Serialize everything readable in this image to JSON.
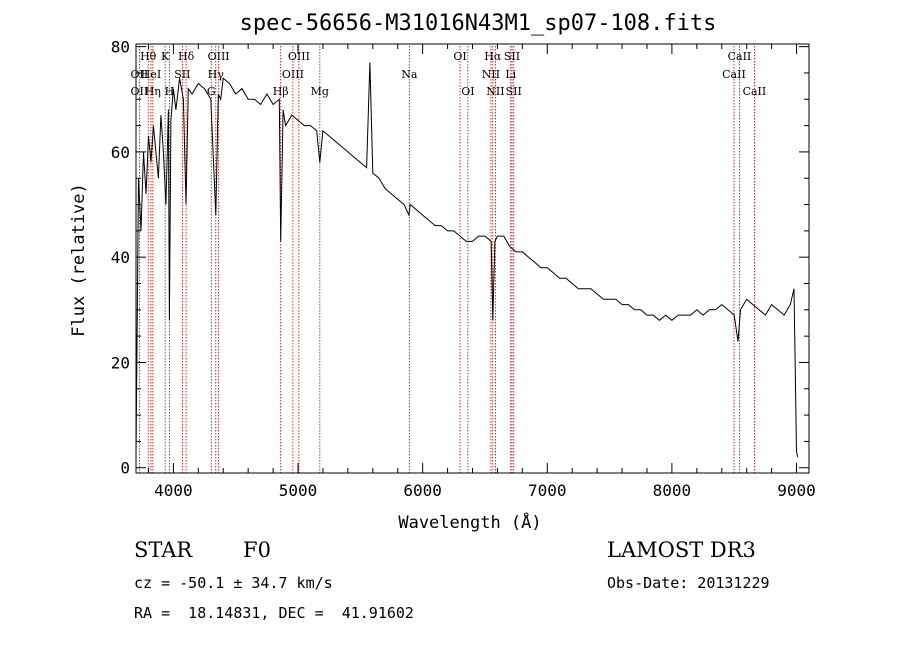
{
  "chart_data": {
    "type": "line",
    "title": "spec-56656-M31016N43M1_sp07-108.fits",
    "xlabel": "Wavelength (Å)",
    "ylabel": "Flux (relative)",
    "xlim": [
      3700,
      9100
    ],
    "ylim": [
      -1,
      80.5
    ],
    "xticks": [
      4000,
      5000,
      6000,
      7000,
      8000,
      9000
    ],
    "yticks": [
      0,
      20,
      40,
      60,
      80
    ],
    "spectrum": {
      "x": [
        3700,
        3720,
        3740,
        3760,
        3780,
        3800,
        3820,
        3840,
        3860,
        3880,
        3900,
        3920,
        3940,
        3960,
        3968,
        3980,
        4000,
        4020,
        4050,
        4080,
        4101,
        4120,
        4150,
        4200,
        4250,
        4300,
        4340,
        4360,
        4380,
        4400,
        4450,
        4500,
        4550,
        4600,
        4650,
        4700,
        4750,
        4800,
        4850,
        4861,
        4880,
        4900,
        4950,
        5000,
        5050,
        5100,
        5150,
        5175,
        5200,
        5250,
        5300,
        5350,
        5400,
        5450,
        5500,
        5550,
        5577,
        5600,
        5650,
        5700,
        5750,
        5800,
        5850,
        5890,
        5900,
        5950,
        6000,
        6050,
        6100,
        6150,
        6200,
        6250,
        6300,
        6350,
        6400,
        6450,
        6500,
        6550,
        6563,
        6580,
        6600,
        6650,
        6700,
        6750,
        6800,
        6850,
        6900,
        6950,
        7000,
        7050,
        7100,
        7150,
        7200,
        7250,
        7300,
        7350,
        7400,
        7450,
        7500,
        7550,
        7600,
        7650,
        7700,
        7750,
        7800,
        7850,
        7900,
        7950,
        8000,
        8050,
        8100,
        8150,
        8200,
        8250,
        8300,
        8350,
        8400,
        8450,
        8500,
        8530,
        8550,
        8600,
        8650,
        8700,
        8750,
        8800,
        8850,
        8900,
        8950,
        8980,
        9000,
        9010
      ],
      "y": [
        2,
        55,
        45,
        60,
        52,
        63,
        58,
        65,
        60,
        55,
        67,
        60,
        50,
        68,
        28,
        66,
        72,
        68,
        74,
        70,
        50,
        72,
        71,
        73,
        72,
        70,
        48,
        71,
        70,
        74,
        73,
        71,
        72,
        70,
        70,
        69,
        71,
        69,
        70,
        43,
        68,
        65,
        67,
        66,
        65,
        65,
        64,
        58,
        64,
        63,
        62,
        61,
        60,
        59,
        58,
        57,
        77,
        56,
        55,
        53,
        52,
        51,
        50,
        48,
        50,
        49,
        48,
        47,
        46,
        46,
        45,
        45,
        44,
        43,
        43,
        44,
        44,
        43,
        28,
        43,
        44,
        44,
        42,
        41,
        41,
        40,
        39,
        38,
        38,
        37,
        36,
        36,
        35,
        34,
        34,
        34,
        33,
        32,
        32,
        32,
        31,
        31,
        30,
        30,
        29,
        29,
        28,
        29,
        28,
        29,
        29,
        29,
        30,
        29,
        30,
        30,
        31,
        30,
        29,
        24,
        30,
        32,
        31,
        30,
        29,
        31,
        30,
        29,
        31,
        34,
        3,
        2
      ]
    },
    "spectral_lines": [
      {
        "name": "Hθ",
        "wave": 3798,
        "row": 0
      },
      {
        "name": "OII",
        "wave": 3727,
        "row": 1
      },
      {
        "name": "OII",
        "wave": 3727,
        "row": 2
      },
      {
        "name": "HeI",
        "wave": 3820,
        "row": 1
      },
      {
        "name": "Hη",
        "wave": 3835,
        "row": 2
      },
      {
        "name": "K",
        "wave": 3934,
        "row": 0
      },
      {
        "name": "H",
        "wave": 3968,
        "row": 2
      },
      {
        "name": "Hδ",
        "wave": 4102,
        "row": 0
      },
      {
        "name": "SII",
        "wave": 4072,
        "row": 1
      },
      {
        "name": "Hγ",
        "wave": 4340,
        "row": 1
      },
      {
        "name": "OIII",
        "wave": 4363,
        "row": 0
      },
      {
        "name": "G",
        "wave": 4304,
        "row": 2
      },
      {
        "name": "Hβ",
        "wave": 4861,
        "row": 2
      },
      {
        "name": "OIII",
        "wave": 4959,
        "row": 1
      },
      {
        "name": "OIII",
        "wave": 5007,
        "row": 0
      },
      {
        "name": "Mg",
        "wave": 5175,
        "row": 2
      },
      {
        "name": "Na",
        "wave": 5893,
        "row": 1
      },
      {
        "name": "OI",
        "wave": 6300,
        "row": 0
      },
      {
        "name": "OI",
        "wave": 6363,
        "row": 2
      },
      {
        "name": "Hα",
        "wave": 6563,
        "row": 0
      },
      {
        "name": "NII",
        "wave": 6548,
        "row": 1
      },
      {
        "name": "NII",
        "wave": 6584,
        "row": 2
      },
      {
        "name": "SII",
        "wave": 6717,
        "row": 0
      },
      {
        "name": "Li",
        "wave": 6707,
        "row": 1
      },
      {
        "name": "SII",
        "wave": 6731,
        "row": 2
      },
      {
        "name": "CaII",
        "wave": 8542,
        "row": 0
      },
      {
        "name": "CaII",
        "wave": 8498,
        "row": 1
      },
      {
        "name": "CaII",
        "wave": 8662,
        "row": 2
      }
    ]
  },
  "info": {
    "class": "STAR",
    "subclass": "F0",
    "survey": "LAMOST DR3",
    "cz": "cz = -50.1 ± 34.7 km/s",
    "obsdate": "Obs-Date: 20131229",
    "radec": "RA =  18.14831, DEC =  41.91602"
  },
  "colors": {
    "line_marker": "#b00000",
    "spectrum": "#000000",
    "axes": "#000000"
  }
}
